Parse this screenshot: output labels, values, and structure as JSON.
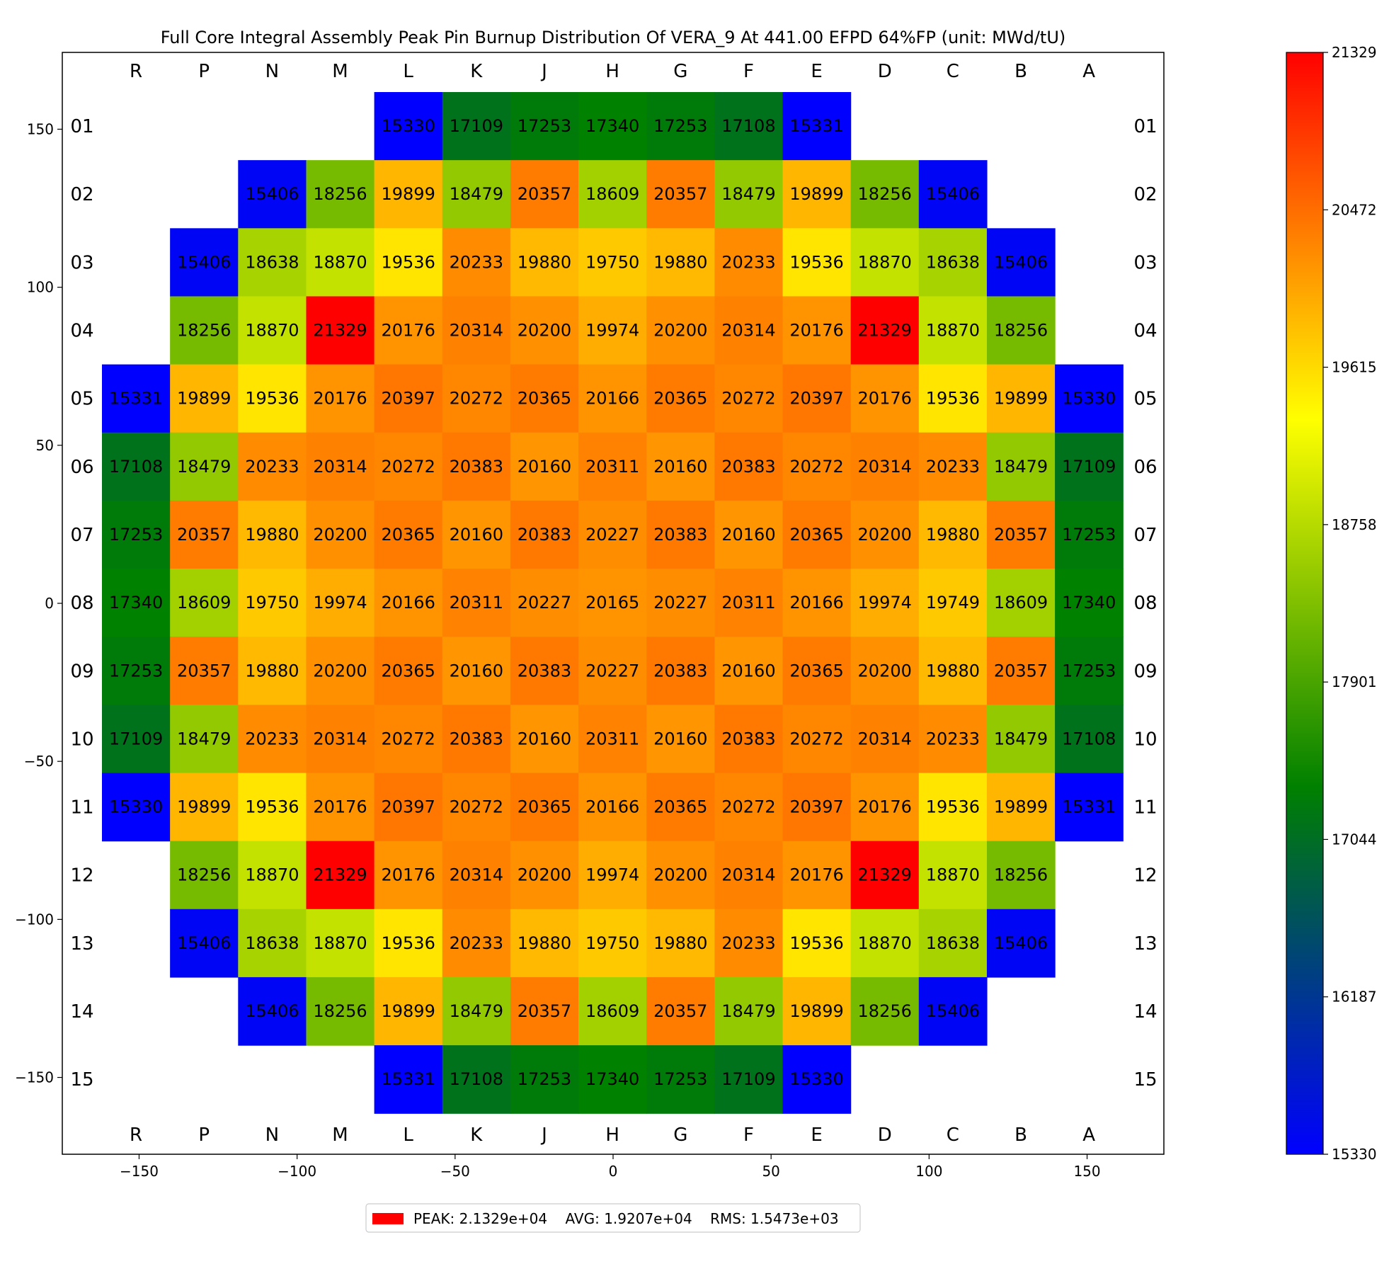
{
  "chart_data": {
    "type": "heatmap",
    "title": "Full Core Integral Assembly Peak Pin Burnup Distribution Of VERA_9 At 441.00 EFPD 64%FP (unit: MWd/tU)",
    "columns": [
      "R",
      "P",
      "N",
      "M",
      "L",
      "K",
      "J",
      "H",
      "G",
      "F",
      "E",
      "D",
      "C",
      "B",
      "A"
    ],
    "rows": [
      "01",
      "02",
      "03",
      "04",
      "05",
      "06",
      "07",
      "08",
      "09",
      "10",
      "11",
      "12",
      "13",
      "14",
      "15"
    ],
    "x_ticks": [
      -150,
      -100,
      -50,
      0,
      50,
      100,
      150
    ],
    "y_ticks": [
      150,
      100,
      50,
      0,
      -50,
      -100,
      -150
    ],
    "x_tick_labels": [
      "−150",
      "−100",
      "−50",
      "0",
      "50",
      "100",
      "150"
    ],
    "y_tick_labels": [
      "150",
      "100",
      "50",
      "0",
      "−50",
      "−100",
      "−150"
    ],
    "xlim": [
      -174.3,
      174.3
    ],
    "ylim": [
      -174.3,
      174.3
    ],
    "values": [
      [
        null,
        null,
        null,
        null,
        15330,
        17109,
        17253,
        17340,
        17253,
        17108,
        15331,
        null,
        null,
        null,
        null
      ],
      [
        null,
        null,
        15406,
        18256,
        19899,
        18479,
        20357,
        18609,
        20357,
        18479,
        19899,
        18256,
        15406,
        null,
        null
      ],
      [
        null,
        15406,
        18638,
        18870,
        19536,
        20233,
        19880,
        19750,
        19880,
        20233,
        19536,
        18870,
        18638,
        15406,
        null
      ],
      [
        null,
        18256,
        18870,
        21329,
        20176,
        20314,
        20200,
        19974,
        20200,
        20314,
        20176,
        21329,
        18870,
        18256,
        null
      ],
      [
        15331,
        19899,
        19536,
        20176,
        20397,
        20272,
        20365,
        20166,
        20365,
        20272,
        20397,
        20176,
        19536,
        19899,
        15330
      ],
      [
        17108,
        18479,
        20233,
        20314,
        20272,
        20383,
        20160,
        20311,
        20160,
        20383,
        20272,
        20314,
        20233,
        18479,
        17109
      ],
      [
        17253,
        20357,
        19880,
        20200,
        20365,
        20160,
        20383,
        20227,
        20383,
        20160,
        20365,
        20200,
        19880,
        20357,
        17253
      ],
      [
        17340,
        18609,
        19750,
        19974,
        20166,
        20311,
        20227,
        20165,
        20227,
        20311,
        20166,
        19974,
        19749,
        18609,
        17340
      ],
      [
        17253,
        20357,
        19880,
        20200,
        20365,
        20160,
        20383,
        20227,
        20383,
        20160,
        20365,
        20200,
        19880,
        20357,
        17253
      ],
      [
        17109,
        18479,
        20233,
        20314,
        20272,
        20383,
        20160,
        20311,
        20160,
        20383,
        20272,
        20314,
        20233,
        18479,
        17108
      ],
      [
        15330,
        19899,
        19536,
        20176,
        20397,
        20272,
        20365,
        20166,
        20365,
        20272,
        20397,
        20176,
        19536,
        19899,
        15331
      ],
      [
        null,
        18256,
        18870,
        21329,
        20176,
        20314,
        20200,
        19974,
        20200,
        20314,
        20176,
        21329,
        18870,
        18256,
        null
      ],
      [
        null,
        15406,
        18638,
        18870,
        19536,
        20233,
        19880,
        19750,
        19880,
        20233,
        19536,
        18870,
        18638,
        15406,
        null
      ],
      [
        null,
        null,
        15406,
        18256,
        19899,
        18479,
        20357,
        18609,
        20357,
        18479,
        19899,
        18256,
        15406,
        null,
        null
      ],
      [
        null,
        null,
        null,
        null,
        15331,
        17108,
        17253,
        17340,
        17253,
        17109,
        15330,
        null,
        null,
        null,
        null
      ]
    ],
    "colorbar": {
      "min": 15330,
      "max": 21329,
      "tick_labels": [
        "21329",
        "20472",
        "19615",
        "18758",
        "17901",
        "17044",
        "16187",
        "15330"
      ],
      "colors": [
        "#0000ff",
        "#008000",
        "#ffff00",
        "#ff0000"
      ]
    },
    "legend": {
      "placement": "bottom-center",
      "text": "PEAK: 2.1329e+04    AVG: 1.9207e+04    RMS: 1.5473e+03",
      "swatch_color": "#ff0000"
    },
    "grid": false
  }
}
